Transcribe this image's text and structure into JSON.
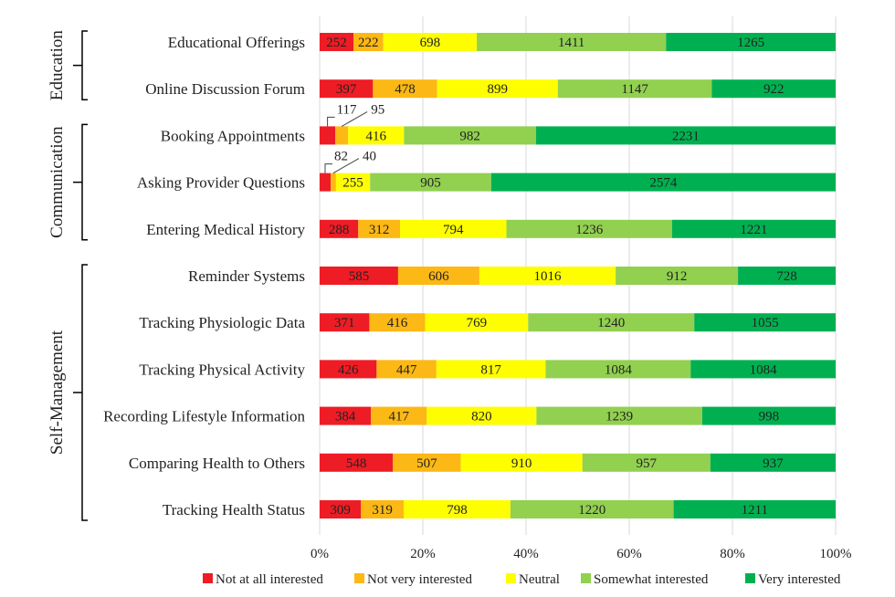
{
  "chart_data": {
    "type": "bar",
    "stacked": "percent",
    "orientation": "horizontal",
    "categories": [
      "Educational Offerings",
      "Online Discussion Forum",
      "Booking Appointments",
      "Asking Provider Questions",
      "Entering Medical History",
      "Reminder Systems",
      "Tracking Physiologic Data",
      "Tracking Physical Activity",
      "Recording Lifestyle Information",
      "Comparing Health to Others",
      "Tracking Health Status"
    ],
    "groups": [
      {
        "label": "Education",
        "categories": [
          "Educational Offerings",
          "Online Discussion Forum"
        ]
      },
      {
        "label": "Communication",
        "categories": [
          "Booking Appointments",
          "Asking Provider Questions",
          "Entering Medical History"
        ]
      },
      {
        "label": "Self-Management",
        "categories": [
          "Reminder Systems",
          "Tracking Physiologic Data",
          "Tracking Physical Activity",
          "Recording Lifestyle Information",
          "Comparing Health to Others",
          "Tracking Health Status"
        ]
      }
    ],
    "series": [
      {
        "name": "Not at all interested",
        "color": "#ee1c25",
        "values": [
          252,
          397,
          117,
          82,
          288,
          585,
          371,
          426,
          384,
          548,
          309
        ]
      },
      {
        "name": "Not very interested",
        "color": "#fcb814",
        "values": [
          222,
          478,
          95,
          40,
          312,
          606,
          416,
          447,
          417,
          507,
          319
        ]
      },
      {
        "name": "Neutral",
        "color": "#fefe00",
        "values": [
          698,
          899,
          416,
          255,
          794,
          1016,
          769,
          817,
          820,
          910,
          798
        ]
      },
      {
        "name": "Somewhat interested",
        "color": "#92d050",
        "values": [
          1411,
          1147,
          982,
          905,
          1236,
          912,
          1240,
          1084,
          1239,
          957,
          1220
        ]
      },
      {
        "name": "Very interested",
        "color": "#00b050",
        "values": [
          1265,
          922,
          2231,
          2574,
          1221,
          728,
          1055,
          1084,
          998,
          937,
          1211
        ]
      }
    ],
    "xticks": [
      "0%",
      "20%",
      "40%",
      "60%",
      "80%",
      "100%"
    ],
    "xlim": [
      0,
      100
    ],
    "legend": "bottom",
    "grid": true
  }
}
